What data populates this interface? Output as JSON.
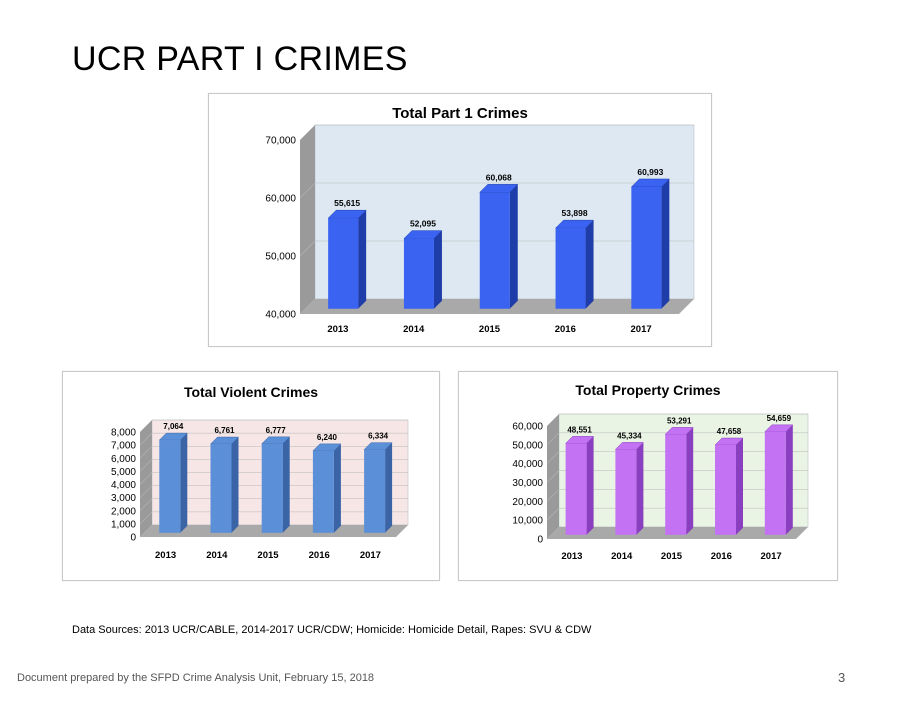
{
  "page": {
    "title": "UCR PART I CRIMES",
    "sources": "Data Sources: 2013 UCR/CABLE, 2014-2017 UCR/CDW; Homicide: Homicide Detail, Rapes: SVU & CDW",
    "footer": "Document prepared by the SFPD Crime Analysis Unit, February 15, 2018",
    "page_number": "3"
  },
  "chart_data": [
    {
      "type": "bar",
      "title": "Total Part 1 Crimes",
      "categories": [
        "2013",
        "2014",
        "2015",
        "2016",
        "2017"
      ],
      "values": [
        55615,
        52095,
        60068,
        53898,
        60993
      ],
      "labels": [
        "55,615",
        "52,095",
        "60,068",
        "53,898",
        "60,993"
      ],
      "ylim": [
        40000,
        70000
      ],
      "yticks": [
        "40,000",
        "50,000",
        "60,000",
        "70,000"
      ],
      "bar_color": "#3a63f2",
      "bar_side_color": "#1f3da8",
      "wall_color": "#dde8f3",
      "xlabel": "",
      "ylabel": ""
    },
    {
      "type": "bar",
      "title": "Total Violent Crimes",
      "categories": [
        "2013",
        "2014",
        "2015",
        "2016",
        "2017"
      ],
      "values": [
        7064,
        6761,
        6777,
        6240,
        6334
      ],
      "labels": [
        "7,064",
        "6,761",
        "6,777",
        "6,240",
        "6,334"
      ],
      "ylim": [
        0,
        8000
      ],
      "yticks": [
        "0",
        "1,000",
        "2,000",
        "3,000",
        "4,000",
        "5,000",
        "6,000",
        "7,000",
        "8,000"
      ],
      "bar_color": "#5b8fd8",
      "bar_side_color": "#3a64a6",
      "wall_color": "#f6e6e6",
      "xlabel": "",
      "ylabel": ""
    },
    {
      "type": "bar",
      "title": "Total Property Crimes",
      "categories": [
        "2013",
        "2014",
        "2015",
        "2016",
        "2017"
      ],
      "values": [
        48551,
        45334,
        53291,
        47658,
        54659
      ],
      "labels": [
        "48,551",
        "45,334",
        "53,291",
        "47,658",
        "54,659"
      ],
      "ylim": [
        0,
        60000
      ],
      "yticks": [
        "0",
        "10,000",
        "20,000",
        "30,000",
        "40,000",
        "50,000",
        "60,000"
      ],
      "bar_color": "#c272f2",
      "bar_side_color": "#8a3fc0",
      "wall_color": "#e9f4e4",
      "xlabel": "",
      "ylabel": ""
    }
  ]
}
